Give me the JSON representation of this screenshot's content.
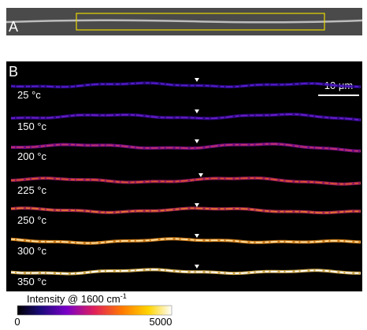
{
  "panel_a": {
    "label": "A"
  },
  "panel_b": {
    "label": "B",
    "scale_bar": "10 μm",
    "rows": [
      {
        "label": "25 °c"
      },
      {
        "label": "150 °c"
      },
      {
        "label": "200 °c"
      },
      {
        "label": "225 °c"
      },
      {
        "label": "250 °c"
      },
      {
        "label": "300 °c"
      },
      {
        "label": "350 °c"
      }
    ]
  },
  "colorbar": {
    "title": "Intensity @ 1600 cm",
    "title_superscript": "-1",
    "min": 0,
    "max": 5000
  }
}
